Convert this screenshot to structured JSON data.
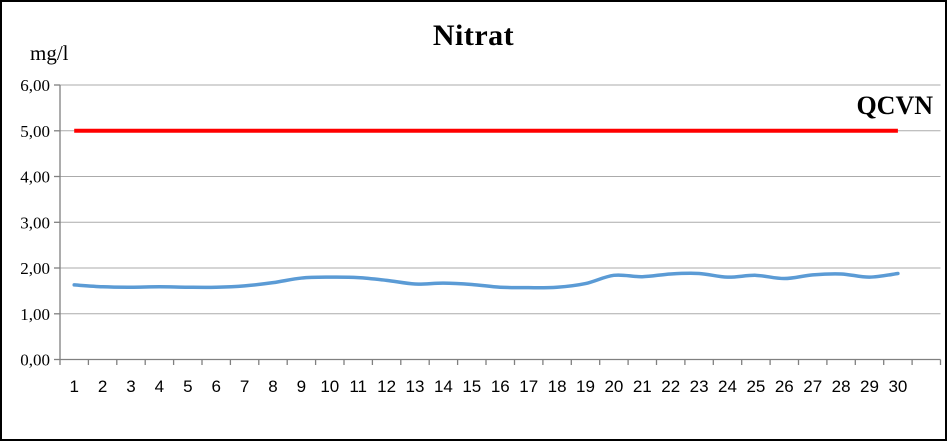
{
  "chart": {
    "title": "Nitrat",
    "unit_label": "mg/l",
    "qcvn_label": "QCVN"
  },
  "chart_data": {
    "type": "line",
    "title": "Nitrat",
    "xlabel": "",
    "ylabel": "mg/l",
    "ylim": [
      0,
      6
    ],
    "y_tick_values": [
      0,
      1,
      2,
      3,
      4,
      5,
      6
    ],
    "y_tick_labels": [
      "0,00",
      "1,00",
      "2,00",
      "3,00",
      "4,00",
      "5,00",
      "6,00"
    ],
    "categories": [
      "1",
      "2",
      "3",
      "4",
      "5",
      "6",
      "7",
      "8",
      "9",
      "10",
      "11",
      "12",
      "13",
      "14",
      "15",
      "16",
      "17",
      "18",
      "19",
      "20",
      "21",
      "22",
      "23",
      "24",
      "25",
      "26",
      "27",
      "28",
      "29",
      "30"
    ],
    "x_slot_count": 31,
    "grid": "horizontal",
    "legend": "none",
    "axis_color": "#808080",
    "gridline_color": "#ABABAB",
    "series": [
      {
        "name": "Nitrat",
        "color": "#5B9BD5",
        "smooth": true,
        "line_width": 3.5,
        "values": [
          1.63,
          1.59,
          1.58,
          1.59,
          1.58,
          1.58,
          1.61,
          1.68,
          1.78,
          1.8,
          1.79,
          1.73,
          1.65,
          1.67,
          1.64,
          1.58,
          1.57,
          1.58,
          1.66,
          1.84,
          1.81,
          1.87,
          1.88,
          1.8,
          1.84,
          1.77,
          1.85,
          1.87,
          1.8,
          1.88
        ]
      },
      {
        "name": "QCVN",
        "color": "#FF0000",
        "style": "constant",
        "line_width": 4,
        "value": 5.0,
        "annotation": "QCVN"
      }
    ]
  }
}
